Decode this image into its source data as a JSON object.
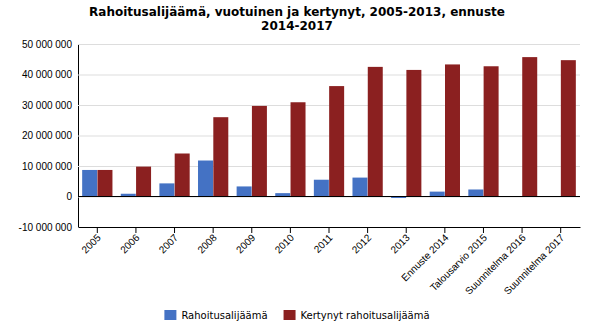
{
  "chart_data": {
    "type": "bar",
    "title": "Rahoitusalijäämä, vuotuinen ja kertynyt, 2005-2013, ennuste\n2014-2017",
    "categories": [
      "2005",
      "2006",
      "2007",
      "2008",
      "2009",
      "2010",
      "2011",
      "2012",
      "2013",
      "Ennuste 2014",
      "Talousarvio 2015",
      "Suunnitelma 2016",
      "Suunnitelma 2017"
    ],
    "series": [
      {
        "name": "Rahoitusalijäämä",
        "color": "#4472C4",
        "values": [
          8700000,
          900000,
          4300000,
          11800000,
          3300000,
          1100000,
          5500000,
          6200000,
          -500000,
          1600000,
          2300000,
          100000,
          0
        ]
      },
      {
        "name": "Kertynyt rahoitusalijäämä",
        "color": "#8B2020",
        "values": [
          8700000,
          9800000,
          14100000,
          26000000,
          29700000,
          30900000,
          36200000,
          42500000,
          41500000,
          43300000,
          42700000,
          45700000,
          44700000
        ]
      }
    ],
    "ylim": [
      -10000000,
      50000000
    ],
    "yticks": [
      {
        "value": -10000000,
        "label": "-10 000 000"
      },
      0,
      {
        "value": 10000000,
        "label": "10 000 000"
      },
      {
        "value": 20000000,
        "label": "20 000 000"
      },
      {
        "value": 30000000,
        "label": "30 000 000"
      },
      {
        "value": 40000000,
        "label": "40 000 000"
      },
      {
        "value": 50000000,
        "label": "50 000 000"
      }
    ],
    "grid": true,
    "legend": "bottom"
  }
}
